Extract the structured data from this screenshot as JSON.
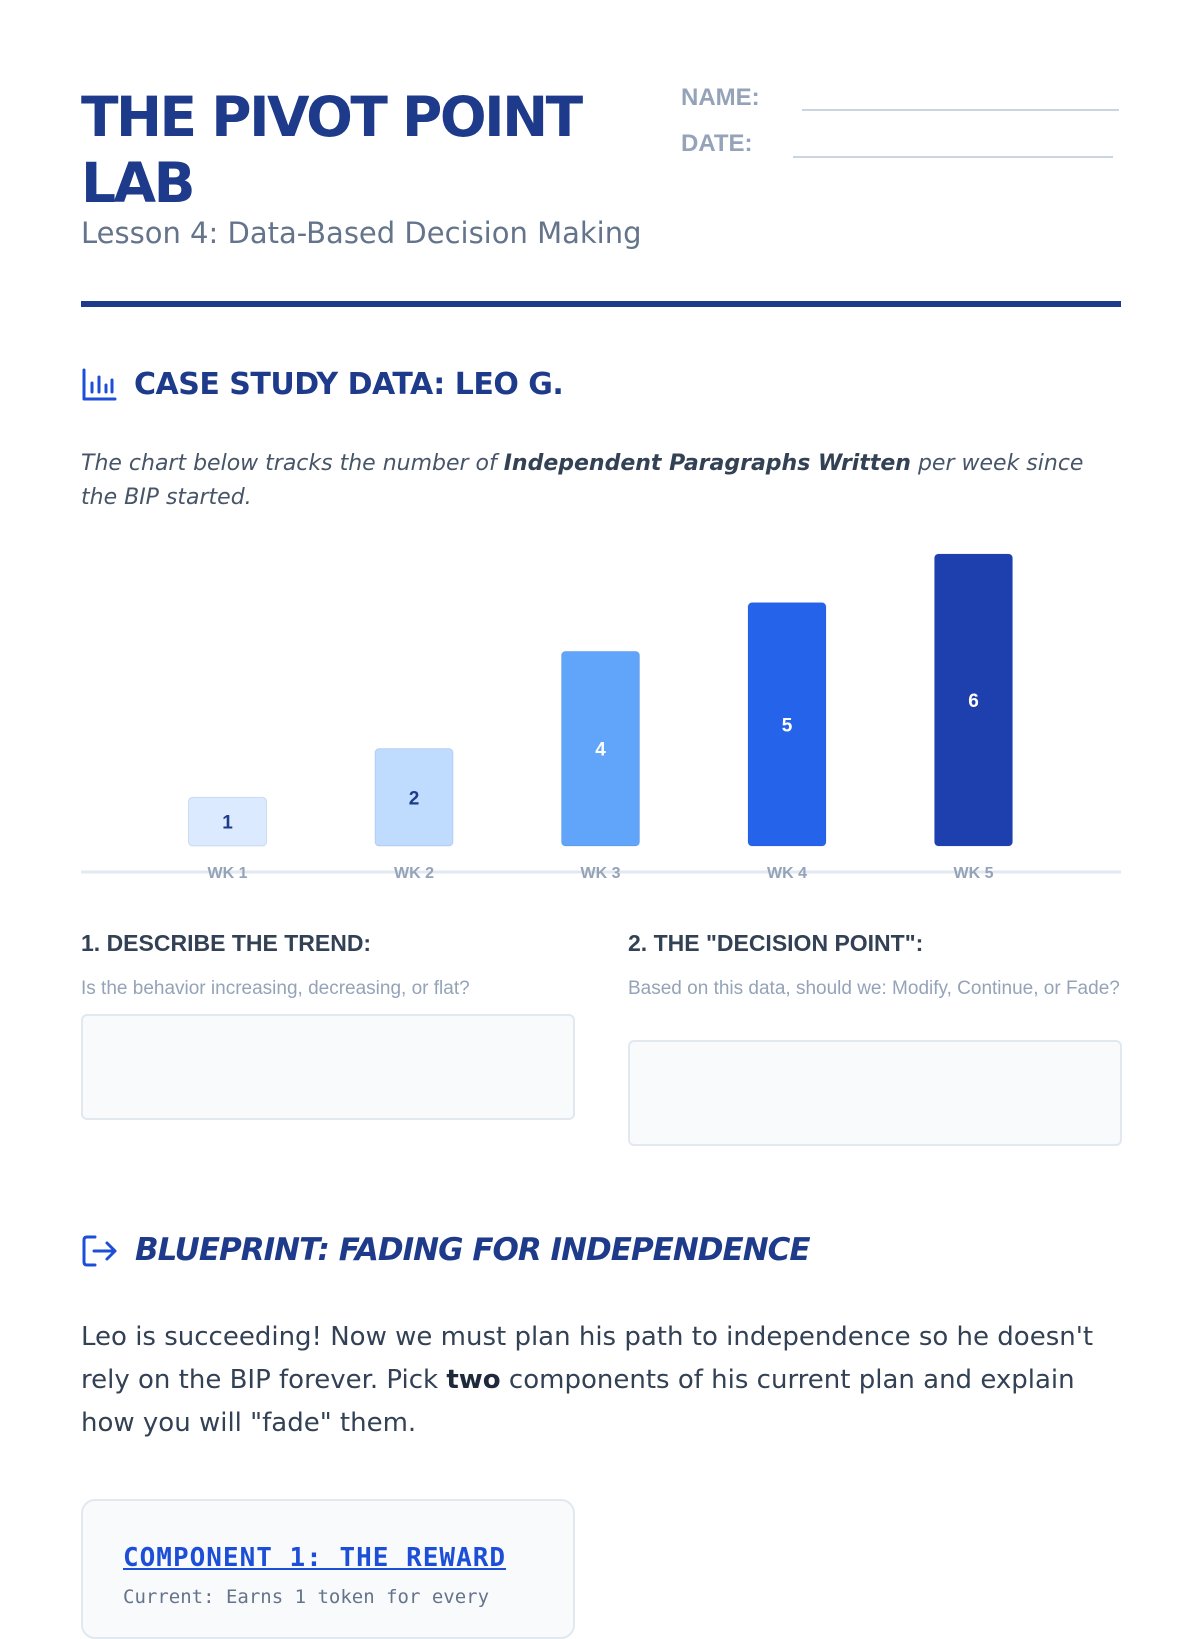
{
  "header": {
    "title": "THE PIVOT POINT LAB",
    "subtitle": "Lesson 4: Data-Based Decision Making",
    "name_label": "NAME:",
    "date_label": "DATE:"
  },
  "case_study": {
    "icon": "bar-chart-icon",
    "heading": "CASE STUDY DATA: LEO G.",
    "intro_before": "The chart below tracks the number of ",
    "intro_bold": "Independent Paragraphs Written",
    "intro_after": " per week since the BIP started."
  },
  "chart_data": {
    "type": "bar",
    "title": "",
    "xlabel": "",
    "ylabel": "",
    "categories": [
      "WK 1",
      "WK 2",
      "WK 3",
      "WK 4",
      "WK 5"
    ],
    "values": [
      1,
      2,
      4,
      5,
      6
    ],
    "ylim": [
      0,
      6
    ],
    "grid": false,
    "legend": "none",
    "bar_colors": [
      "#dbeafe",
      "#bfdbfe",
      "#60a5fa",
      "#2563eb",
      "#1e40af"
    ],
    "label_colors": [
      "#1e3a8a",
      "#1e3a8a",
      "#ffffff",
      "#ffffff",
      "#ffffff"
    ]
  },
  "questions": [
    {
      "title": "1. DESCRIBE THE TREND:",
      "hint": "Is the behavior increasing, decreasing, or flat?"
    },
    {
      "title": "2. THE \"DECISION POINT\":",
      "hint": "Based on this data, should we: Modify, Continue, or Fade?"
    }
  ],
  "blueprint": {
    "icon": "exit-arrow-icon",
    "heading": "BLUEPRINT: FADING FOR INDEPENDENCE",
    "body_before": "Leo is succeeding! Now we must plan his path to independence so he doesn't rely on the BIP forever. Pick ",
    "body_bold": "two",
    "body_after": " components of his current plan and explain how you will \"fade\" them."
  },
  "component_1": {
    "title": "COMPONENT 1: THE REWARD",
    "current": "Current: Earns 1 token for every"
  },
  "colors": {
    "brand": "#1e3a8a",
    "accent": "#1d4ed8",
    "muted": "#94a3b8"
  }
}
